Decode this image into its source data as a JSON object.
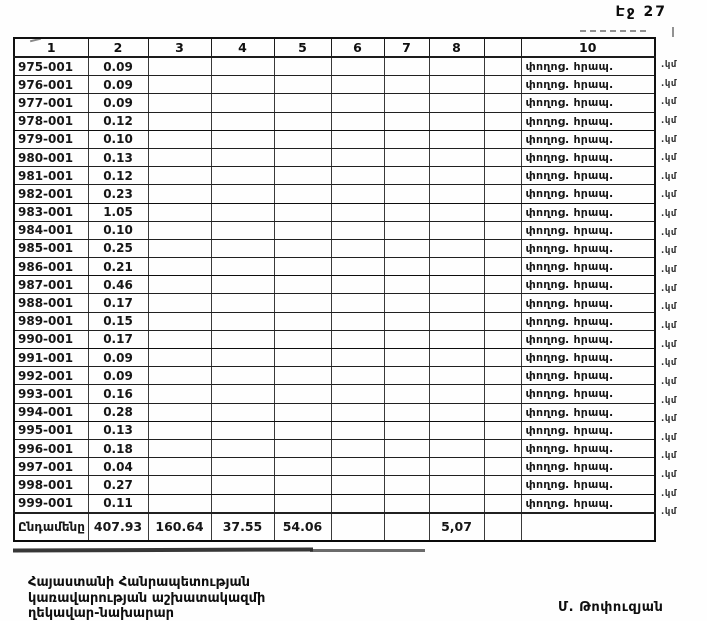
{
  "page": {
    "label": "Էջ 27"
  },
  "table": {
    "headers": [
      "1",
      "2",
      "3",
      "4",
      "5",
      "6",
      "7",
      "8",
      "",
      "10"
    ],
    "row_note": "փողոց. հրապ.",
    "unit_note": ".կմ",
    "rows": [
      {
        "id": "975-001",
        "value": "0.09"
      },
      {
        "id": "976-001",
        "value": "0.09"
      },
      {
        "id": "977-001",
        "value": "0.09"
      },
      {
        "id": "978-001",
        "value": "0.12"
      },
      {
        "id": "979-001",
        "value": "0.10"
      },
      {
        "id": "980-001",
        "value": "0.13"
      },
      {
        "id": "981-001",
        "value": "0.12"
      },
      {
        "id": "982-001",
        "value": "0.23"
      },
      {
        "id": "983-001",
        "value": "1.05"
      },
      {
        "id": "984-001",
        "value": "0.10"
      },
      {
        "id": "985-001",
        "value": "0.25"
      },
      {
        "id": "986-001",
        "value": "0.21"
      },
      {
        "id": "987-001",
        "value": "0.46"
      },
      {
        "id": "988-001",
        "value": "0.17"
      },
      {
        "id": "989-001",
        "value": "0.15"
      },
      {
        "id": "990-001",
        "value": "0.17"
      },
      {
        "id": "991-001",
        "value": "0.09"
      },
      {
        "id": "992-001",
        "value": "0.09"
      },
      {
        "id": "993-001",
        "value": "0.16"
      },
      {
        "id": "994-001",
        "value": "0.28"
      },
      {
        "id": "995-001",
        "value": "0.13"
      },
      {
        "id": "996-001",
        "value": "0.18"
      },
      {
        "id": "997-001",
        "value": "0.04"
      },
      {
        "id": "998-001",
        "value": "0.27"
      },
      {
        "id": "999-001",
        "value": "0.11"
      }
    ],
    "totals": {
      "label": "Ընդամենը",
      "values": [
        "407.93",
        "160.64",
        "37.55",
        "54.06",
        "",
        "",
        "5,07",
        "",
        ""
      ]
    }
  },
  "footer": {
    "lines": [
      "Հայաստանի Հանրապետության",
      "կառավարության աշխատակազմի",
      "ղեկավար-նախարար"
    ],
    "signature": "Մ. Թոփուզյան"
  }
}
